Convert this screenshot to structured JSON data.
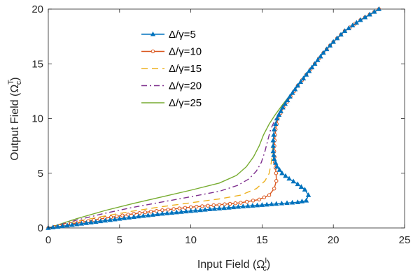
{
  "chart_data": {
    "type": "line",
    "title": "",
    "xlabel": "Input Field (Ω",
    "xlabel_sup": "I",
    "xlabel_sub": "c",
    "xlabel_close": ")",
    "ylabel": "Output Field (Ω",
    "ylabel_sup": "T",
    "ylabel_sub": "c",
    "ylabel_close": ")",
    "xlim": [
      0,
      25
    ],
    "ylim": [
      0,
      20
    ],
    "xticks": [
      "0",
      "5",
      "10",
      "15",
      "20",
      "25"
    ],
    "yticks": [
      "0",
      "5",
      "10",
      "15",
      "20"
    ],
    "grid": false,
    "legend_position": "top-left",
    "series": [
      {
        "name": "Δ/γ=5",
        "color": "#0072BD",
        "style": "solid",
        "marker": "triangle",
        "points": [
          [
            0,
            0
          ],
          [
            2,
            0.33
          ],
          [
            4,
            0.67
          ],
          [
            6,
            1.0
          ],
          [
            8,
            1.3
          ],
          [
            10,
            1.55
          ],
          [
            12,
            1.78
          ],
          [
            14,
            2.0
          ],
          [
            16,
            2.2
          ],
          [
            17.5,
            2.35
          ],
          [
            18.1,
            2.5
          ],
          [
            18.25,
            3.0
          ],
          [
            18.0,
            3.5
          ],
          [
            17.5,
            4.0
          ],
          [
            16.9,
            4.5
          ],
          [
            16.4,
            5.0
          ],
          [
            16.05,
            5.6
          ],
          [
            15.85,
            6.3
          ],
          [
            15.78,
            7.0
          ],
          [
            15.78,
            8.0
          ],
          [
            15.85,
            9.0
          ],
          [
            16.05,
            10.0
          ],
          [
            16.45,
            11.0
          ],
          [
            16.95,
            12.0
          ],
          [
            17.5,
            13.0
          ],
          [
            18.1,
            14.0
          ],
          [
            18.7,
            15.0
          ],
          [
            19.3,
            16.0
          ],
          [
            20.0,
            17.0
          ],
          [
            20.8,
            18.0
          ],
          [
            21.9,
            19.0
          ],
          [
            23.2,
            20.0
          ]
        ]
      },
      {
        "name": "Δ/γ=10",
        "color": "#D95319",
        "style": "solid",
        "marker": "circle",
        "points": [
          [
            0,
            0
          ],
          [
            2,
            0.45
          ],
          [
            4,
            0.9
          ],
          [
            6,
            1.3
          ],
          [
            8,
            1.62
          ],
          [
            10,
            1.9
          ],
          [
            12,
            2.12
          ],
          [
            13.5,
            2.3
          ],
          [
            14.8,
            2.6
          ],
          [
            15.5,
            3.0
          ],
          [
            15.85,
            3.6
          ],
          [
            16.0,
            4.3
          ],
          [
            15.98,
            5.0
          ],
          [
            15.9,
            6.0
          ],
          [
            15.85,
            7.0
          ],
          [
            15.88,
            8.0
          ],
          [
            15.95,
            9.0
          ],
          [
            16.1,
            10.0
          ],
          [
            16.5,
            11.0
          ],
          [
            17.0,
            12.0
          ],
          [
            17.5,
            13.0
          ],
          [
            18.1,
            14.0
          ],
          [
            18.7,
            15.0
          ],
          [
            19.3,
            16.0
          ],
          [
            20.0,
            17.0
          ],
          [
            20.8,
            18.0
          ],
          [
            21.9,
            19.0
          ],
          [
            23.2,
            20.0
          ]
        ]
      },
      {
        "name": "Δ/γ=15",
        "color": "#EDB120",
        "style": "dashed",
        "marker": "none",
        "points": [
          [
            0,
            0
          ],
          [
            2,
            0.6
          ],
          [
            4,
            1.1
          ],
          [
            6,
            1.55
          ],
          [
            8,
            1.95
          ],
          [
            10,
            2.3
          ],
          [
            12,
            2.65
          ],
          [
            13.5,
            3.0
          ],
          [
            14.6,
            3.6
          ],
          [
            15.2,
            4.3
          ],
          [
            15.5,
            5.0
          ],
          [
            15.65,
            6.0
          ],
          [
            15.72,
            7.0
          ],
          [
            15.78,
            8.0
          ],
          [
            15.85,
            9.0
          ],
          [
            16.1,
            10.0
          ],
          [
            16.5,
            11.0
          ],
          [
            17.0,
            12.0
          ],
          [
            17.5,
            13.0
          ],
          [
            18.1,
            14.0
          ],
          [
            18.7,
            15.0
          ],
          [
            19.3,
            16.0
          ],
          [
            20.0,
            17.0
          ],
          [
            20.8,
            18.0
          ],
          [
            21.9,
            19.0
          ],
          [
            23.2,
            20.0
          ]
        ]
      },
      {
        "name": "Δ/γ=20",
        "color": "#7E2F8E",
        "style": "dashdot",
        "marker": "none",
        "points": [
          [
            0,
            0
          ],
          [
            2,
            0.72
          ],
          [
            4,
            1.35
          ],
          [
            6,
            1.9
          ],
          [
            8,
            2.38
          ],
          [
            10,
            2.85
          ],
          [
            12,
            3.35
          ],
          [
            13.3,
            3.9
          ],
          [
            14.1,
            4.5
          ],
          [
            14.6,
            5.2
          ],
          [
            14.95,
            6.0
          ],
          [
            15.2,
            7.0
          ],
          [
            15.4,
            8.0
          ],
          [
            15.6,
            9.0
          ],
          [
            15.95,
            10.0
          ],
          [
            16.4,
            11.0
          ],
          [
            16.95,
            12.0
          ],
          [
            17.5,
            13.0
          ],
          [
            18.1,
            14.0
          ],
          [
            18.7,
            15.0
          ],
          [
            19.3,
            16.0
          ],
          [
            20.0,
            17.0
          ],
          [
            20.8,
            18.0
          ],
          [
            21.9,
            19.0
          ],
          [
            23.2,
            20.0
          ]
        ]
      },
      {
        "name": "Δ/γ=25",
        "color": "#77AC30",
        "style": "solid",
        "marker": "none",
        "points": [
          [
            0,
            0
          ],
          [
            2,
            0.85
          ],
          [
            4,
            1.6
          ],
          [
            6,
            2.25
          ],
          [
            8,
            2.85
          ],
          [
            10,
            3.45
          ],
          [
            12,
            4.1
          ],
          [
            13.2,
            4.8
          ],
          [
            13.9,
            5.6
          ],
          [
            14.4,
            6.5
          ],
          [
            14.8,
            7.5
          ],
          [
            15.1,
            8.5
          ],
          [
            15.5,
            9.5
          ],
          [
            15.9,
            10.3
          ],
          [
            16.4,
            11.2
          ],
          [
            17.0,
            12.2
          ],
          [
            17.5,
            13.0
          ],
          [
            18.1,
            14.0
          ],
          [
            18.7,
            15.0
          ],
          [
            19.3,
            16.0
          ],
          [
            20.0,
            17.0
          ],
          [
            20.8,
            18.0
          ],
          [
            21.9,
            19.0
          ],
          [
            23.2,
            20.0
          ]
        ]
      }
    ]
  }
}
